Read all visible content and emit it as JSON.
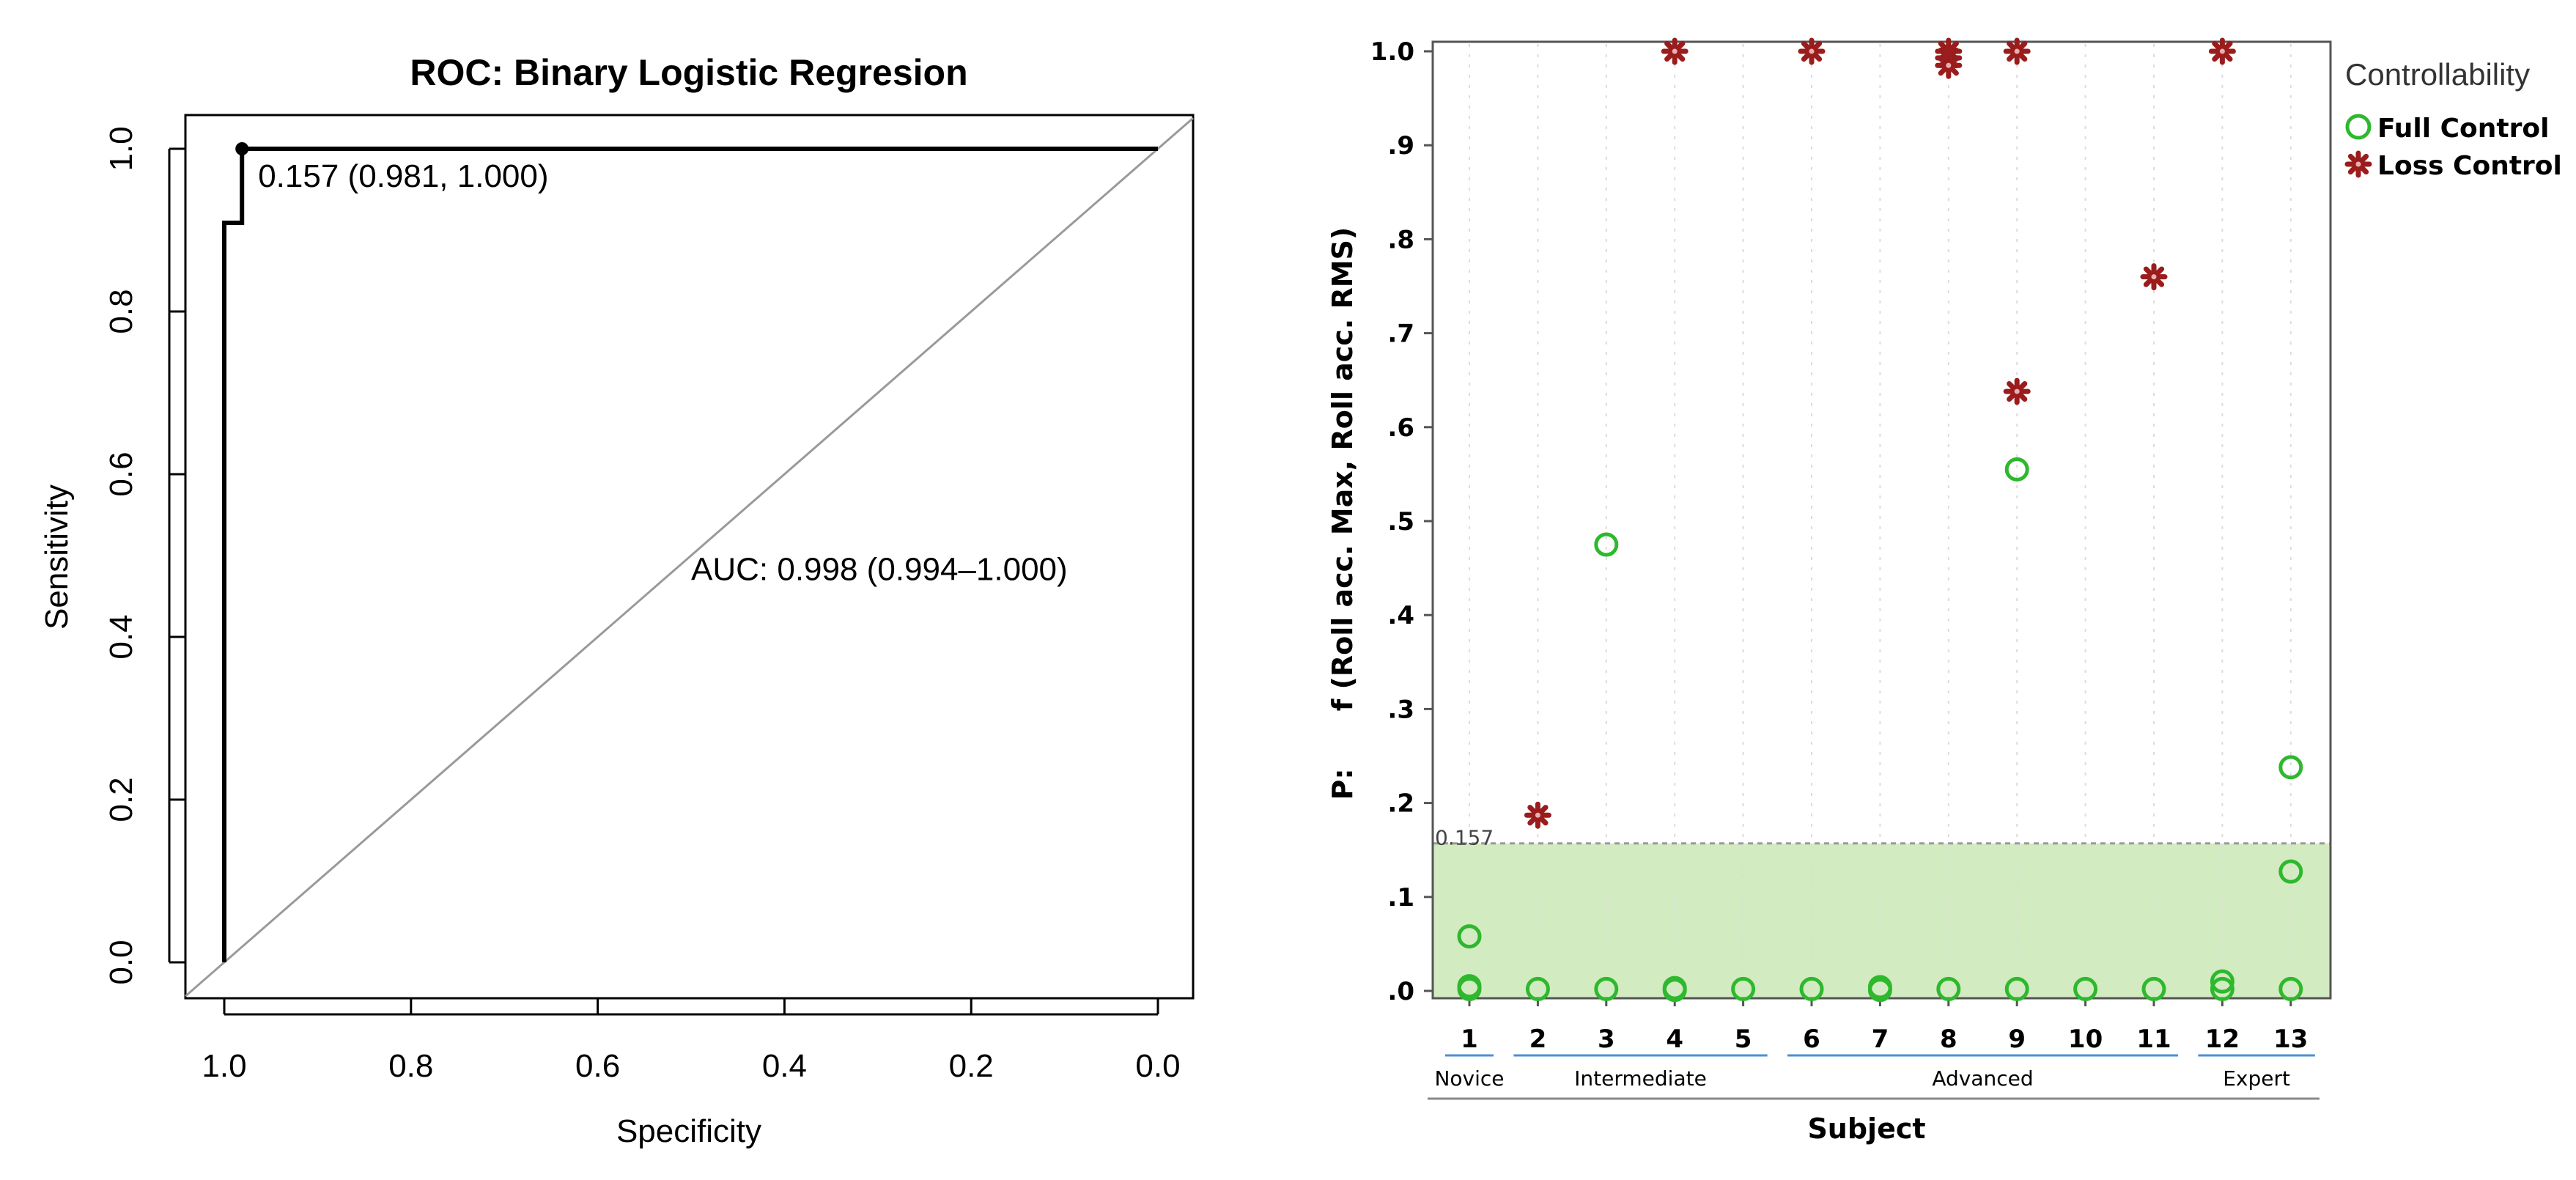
{
  "chart_data": [
    {
      "type": "line",
      "title": "ROC: Binary Logistic Regresion",
      "xlabel": "Specificity",
      "ylabel": "Sensitivity",
      "xlim": [
        1.0,
        0.0
      ],
      "ylim": [
        0.0,
        1.0
      ],
      "x_ticks": [
        "1.0",
        "0.8",
        "0.6",
        "0.4",
        "0.2",
        "0.0"
      ],
      "y_ticks": [
        "0.0",
        "0.2",
        "0.4",
        "0.6",
        "0.8",
        "1.0"
      ],
      "roc_curve": {
        "specificity": [
          1.0,
          1.0,
          0.981,
          0.981,
          0.981,
          0.0
        ],
        "sensitivity": [
          0.0,
          0.909,
          0.909,
          1.0,
          1.0,
          1.0
        ]
      },
      "reference_line": {
        "from": [
          1.0,
          0.0
        ],
        "to": [
          0.0,
          1.0
        ]
      },
      "threshold_point": {
        "specificity": 0.981,
        "sensitivity": 1.0,
        "label": "0.157 (0.981, 1.000)"
      },
      "auc_label": "AUC: 0.998 (0.994–1.000)"
    },
    {
      "type": "scatter",
      "ylabel_prefix": "P:",
      "ylabel": "f (Roll acc. Max, Roll acc. RMS)",
      "xlabel": "Subject",
      "ylim": [
        0.0,
        1.0
      ],
      "y_ticks": [
        ".0",
        ".1",
        ".2",
        ".3",
        ".4",
        ".5",
        ".6",
        ".7",
        ".8",
        ".9",
        "1.0"
      ],
      "categories": [
        "1",
        "2",
        "3",
        "4",
        "5",
        "6",
        "7",
        "8",
        "9",
        "10",
        "11",
        "12",
        "13"
      ],
      "groups": [
        {
          "label": "Novice",
          "from": "1",
          "to": "1"
        },
        {
          "label": "Intermediate",
          "from": "2",
          "to": "5"
        },
        {
          "label": "Advanced",
          "from": "6",
          "to": "11"
        },
        {
          "label": "Expert",
          "from": "12",
          "to": "13"
        }
      ],
      "threshold": {
        "value": 0.157,
        "label": "0.157"
      },
      "legend": {
        "title": "Controllability",
        "entries": [
          "Full Control",
          "Loss Control"
        ]
      },
      "series": [
        {
          "name": "Full Control",
          "color": "#2eb82e",
          "points": [
            [
              "1",
              0.058
            ],
            [
              "1",
              0.005
            ],
            [
              "1",
              0.002
            ],
            [
              "2",
              0.002
            ],
            [
              "3",
              0.475
            ],
            [
              "3",
              0.002
            ],
            [
              "4",
              0.003
            ],
            [
              "4",
              0.001
            ],
            [
              "5",
              0.002
            ],
            [
              "6",
              0.002
            ],
            [
              "7",
              0.004
            ],
            [
              "7",
              0.001
            ],
            [
              "8",
              0.002
            ],
            [
              "9",
              0.555
            ],
            [
              "9",
              0.002
            ],
            [
              "10",
              0.002
            ],
            [
              "11",
              0.002
            ],
            [
              "12",
              0.01
            ],
            [
              "12",
              0.002
            ],
            [
              "13",
              0.238
            ],
            [
              "13",
              0.127
            ],
            [
              "13",
              0.002
            ]
          ]
        },
        {
          "name": "Loss Control",
          "color": "#9b1c1c",
          "points": [
            [
              "2",
              0.187
            ],
            [
              "4",
              1.0
            ],
            [
              "6",
              1.0
            ],
            [
              "8",
              1.0
            ],
            [
              "8",
              0.993
            ],
            [
              "8",
              0.985
            ],
            [
              "9",
              1.0
            ],
            [
              "9",
              0.638
            ],
            [
              "11",
              0.76
            ],
            [
              "12",
              1.0
            ]
          ]
        }
      ]
    }
  ]
}
